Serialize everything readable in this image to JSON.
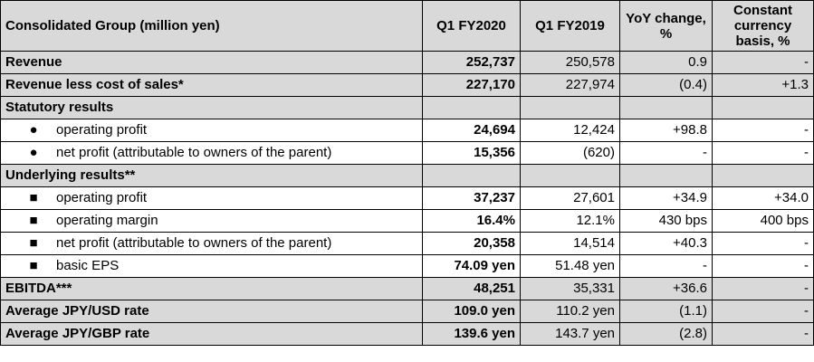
{
  "header": {
    "label": "Consolidated Group (million yen)",
    "col1": "Q1 FY2020",
    "col2": "Q1 FY2019",
    "col3": "YoY change, %",
    "col4": "Constant currency basis, %"
  },
  "rows": [
    {
      "label": "Revenue",
      "v1": "252,737",
      "v2": "250,578",
      "v3": "0.9",
      "v4": "-"
    },
    {
      "label": "Revenue less cost of sales*",
      "v1": "227,170",
      "v2": "227,974",
      "v3": "(0.4)",
      "v4": "+1.3"
    },
    {
      "label": "Statutory results"
    },
    {
      "bullet": "●",
      "label": "operating profit",
      "v1": "24,694",
      "v2": "12,424",
      "v3": "+98.8",
      "v4": "-"
    },
    {
      "bullet": "●",
      "label": "net profit (attributable to owners of the parent)",
      "v1": "15,356",
      "v2": "(620)",
      "v3": "-",
      "v4": "-"
    },
    {
      "label": "Underlying results**"
    },
    {
      "bullet": "■",
      "label": "operating profit",
      "v1": "37,237",
      "v2": "27,601",
      "v3": "+34.9",
      "v4": "+34.0"
    },
    {
      "bullet": "■",
      "label": "operating margin",
      "v1": "16.4%",
      "v2": "12.1%",
      "v3": "430 bps",
      "v4": "400 bps"
    },
    {
      "bullet": "■",
      "label": "net profit (attributable to owners of the parent)",
      "v1": "20,358",
      "v2": "14,514",
      "v3": "+40.3",
      "v4": "-"
    },
    {
      "bullet": "■",
      "label": "basic EPS",
      "v1": "74.09 yen",
      "v2": "51.48 yen",
      "v3": "-",
      "v4": "-"
    },
    {
      "label": "EBITDA***",
      "v1": "48,251",
      "v2": "35,331",
      "v3": "+36.6",
      "v4": "-"
    },
    {
      "label": "Average JPY/USD rate",
      "v1": "109.0 yen",
      "v2": "110.2 yen",
      "v3": "(1.1)",
      "v4": "-"
    },
    {
      "label": "Average JPY/GBP rate",
      "v1": "139.6 yen",
      "v2": "143.7 yen",
      "v3": "(2.8)",
      "v4": "-"
    }
  ]
}
